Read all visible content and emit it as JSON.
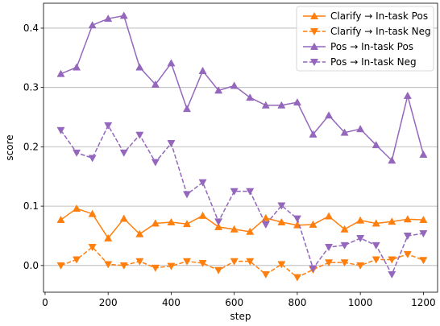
{
  "chart_data": {
    "type": "line",
    "xlabel": "step",
    "ylabel": "score",
    "xlim": [
      -5,
      1245
    ],
    "ylim": [
      -0.045,
      0.442
    ],
    "xticks": [
      0,
      200,
      400,
      600,
      800,
      1000,
      1200
    ],
    "yticks": [
      0.0,
      0.1,
      0.2,
      0.3,
      0.4
    ],
    "grid": "horizontal",
    "legend_position": "top-right",
    "x": [
      50,
      100,
      150,
      200,
      250,
      300,
      350,
      400,
      450,
      500,
      550,
      600,
      650,
      700,
      750,
      800,
      850,
      900,
      950,
      1000,
      1050,
      1100,
      1150,
      1200
    ],
    "series": [
      {
        "name": "Clarify → In-task Pos",
        "color": "#ff7f0e",
        "dash": "solid",
        "marker": "triangle-up",
        "values": [
          0.077,
          0.096,
          0.087,
          0.046,
          0.079,
          0.053,
          0.071,
          0.073,
          0.07,
          0.084,
          0.065,
          0.061,
          0.057,
          0.08,
          0.073,
          0.068,
          0.069,
          0.083,
          0.061,
          0.076,
          0.071,
          0.074,
          0.078,
          0.077
        ]
      },
      {
        "name": "Clarify → In-task Neg",
        "color": "#ff7f0e",
        "dash": "dashed",
        "marker": "triangle-down",
        "values": [
          0.0,
          0.01,
          0.031,
          0.002,
          0.0,
          0.007,
          -0.004,
          -0.001,
          0.007,
          0.004,
          -0.008,
          0.007,
          0.007,
          -0.015,
          0.002,
          -0.02,
          -0.007,
          0.005,
          0.005,
          0.0,
          0.01,
          0.01,
          0.019,
          0.009
        ]
      },
      {
        "name": "Pos → In-task Pos",
        "color": "#9467bd",
        "dash": "solid",
        "marker": "triangle-up",
        "values": [
          0.323,
          0.334,
          0.405,
          0.416,
          0.421,
          0.334,
          0.305,
          0.341,
          0.264,
          0.328,
          0.295,
          0.303,
          0.283,
          0.27,
          0.27,
          0.275,
          0.221,
          0.253,
          0.224,
          0.23,
          0.203,
          0.177,
          0.286,
          0.187
        ]
      },
      {
        "name": "Pos → In-task Neg",
        "color": "#9467bd",
        "dash": "dashed",
        "marker": "triangle-down",
        "values": [
          0.228,
          0.19,
          0.181,
          0.236,
          0.19,
          0.22,
          0.174,
          0.206,
          0.12,
          0.14,
          0.074,
          0.125,
          0.125,
          0.069,
          0.101,
          0.079,
          -0.005,
          0.031,
          0.034,
          0.046,
          0.034,
          -0.015,
          0.05,
          0.054
        ]
      }
    ]
  }
}
